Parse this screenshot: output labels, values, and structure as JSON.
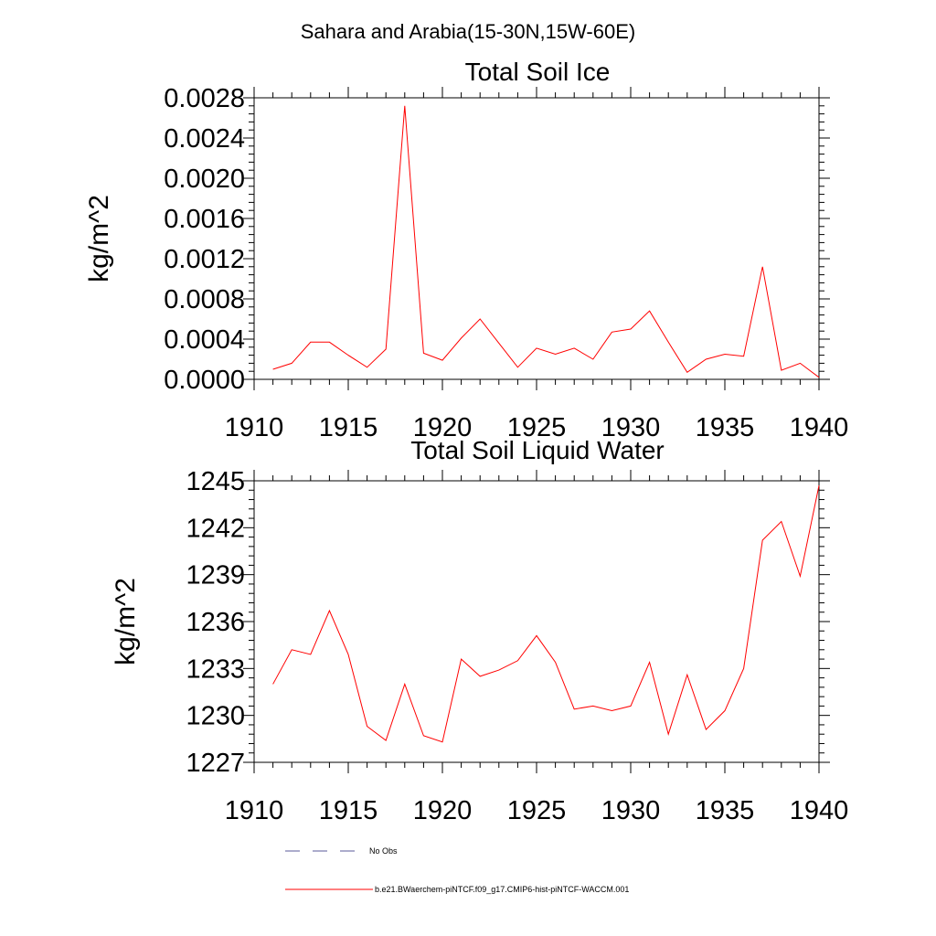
{
  "figure": {
    "suptitle": "Sahara and Arabia(15-30N,15W-60E)"
  },
  "chart_data": [
    {
      "type": "line",
      "title": "Total Soil Ice",
      "xlabel": "",
      "ylabel": "kg/m^2",
      "xlim": [
        1910,
        1940
      ],
      "ylim": [
        0,
        0.0028
      ],
      "xticks": [
        1910,
        1915,
        1920,
        1925,
        1930,
        1935,
        1940
      ],
      "xtick_labels": [
        "1910",
        "1915",
        "1920",
        "1925",
        "1930",
        "1935",
        "1940"
      ],
      "yticks": [
        0,
        0.0004,
        0.0008,
        0.0012,
        0.0016,
        0.002,
        0.0024,
        0.0028
      ],
      "ytick_labels": [
        "0.0000",
        "0.0004",
        "0.0008",
        "0.0012",
        "0.0016",
        "0.0020",
        "0.0024",
        "0.0028"
      ],
      "grid": false,
      "series": [
        {
          "name": "b.e21.BWaerchem-piNTCF.f09_g17.CMIP6-hist-piNTCF-WACCM.001",
          "color": "#ff0000",
          "x": [
            1911,
            1912,
            1913,
            1914,
            1915,
            1916,
            1917,
            1918,
            1919,
            1920,
            1921,
            1922,
            1923,
            1924,
            1925,
            1926,
            1927,
            1928,
            1929,
            1930,
            1931,
            1932,
            1933,
            1934,
            1935,
            1936,
            1937,
            1938,
            1939,
            1940
          ],
          "y": [
            0.0001,
            0.00016,
            0.00037,
            0.00037,
            0.00024,
            0.00012,
            0.0003,
            0.00272,
            0.00026,
            0.00019,
            0.00041,
            0.0006,
            0.00036,
            0.00012,
            0.00031,
            0.00025,
            0.00031,
            0.0002,
            0.00047,
            0.0005,
            0.00068,
            0.00037,
            7e-05,
            0.0002,
            0.00025,
            0.00023,
            0.00112,
            9e-05,
            0.00016,
            2e-05
          ]
        }
      ]
    },
    {
      "type": "line",
      "title": "Total Soil Liquid Water",
      "xlabel": "",
      "ylabel": "kg/m^2",
      "xlim": [
        1910,
        1940
      ],
      "ylim": [
        1227,
        1245
      ],
      "xticks": [
        1910,
        1915,
        1920,
        1925,
        1930,
        1935,
        1940
      ],
      "xtick_labels": [
        "1910",
        "1915",
        "1920",
        "1925",
        "1930",
        "1935",
        "1940"
      ],
      "yticks": [
        1227,
        1230,
        1233,
        1236,
        1239,
        1242,
        1245
      ],
      "ytick_labels": [
        "1227",
        "1230",
        "1233",
        "1236",
        "1239",
        "1242",
        "1245"
      ],
      "grid": false,
      "series": [
        {
          "name": "b.e21.BWaerchem-piNTCF.f09_g17.CMIP6-hist-piNTCF-WACCM.001",
          "color": "#ff0000",
          "x": [
            1911,
            1912,
            1913,
            1914,
            1915,
            1916,
            1917,
            1918,
            1919,
            1920,
            1921,
            1922,
            1923,
            1924,
            1925,
            1926,
            1927,
            1928,
            1929,
            1930,
            1931,
            1932,
            1933,
            1934,
            1935,
            1936,
            1937,
            1938,
            1939,
            1940
          ],
          "y": [
            1232.0,
            1234.2,
            1233.9,
            1236.7,
            1233.9,
            1229.3,
            1228.4,
            1232.0,
            1228.7,
            1228.3,
            1233.6,
            1232.5,
            1232.9,
            1233.5,
            1235.1,
            1233.4,
            1230.4,
            1230.6,
            1230.3,
            1230.6,
            1233.4,
            1228.8,
            1232.6,
            1229.1,
            1230.3,
            1233.0,
            1241.2,
            1242.4,
            1238.9,
            1244.7
          ]
        }
      ]
    }
  ],
  "legend": {
    "placement": "bottom",
    "items": [
      {
        "label": "No Obs",
        "color": "#5a5a9a",
        "dash": "dashed"
      },
      {
        "label": "b.e21.BWaerchem-piNTCF.f09_g17.CMIP6-hist-piNTCF-WACCM.001",
        "color": "#ff0000",
        "dash": "solid"
      }
    ]
  }
}
